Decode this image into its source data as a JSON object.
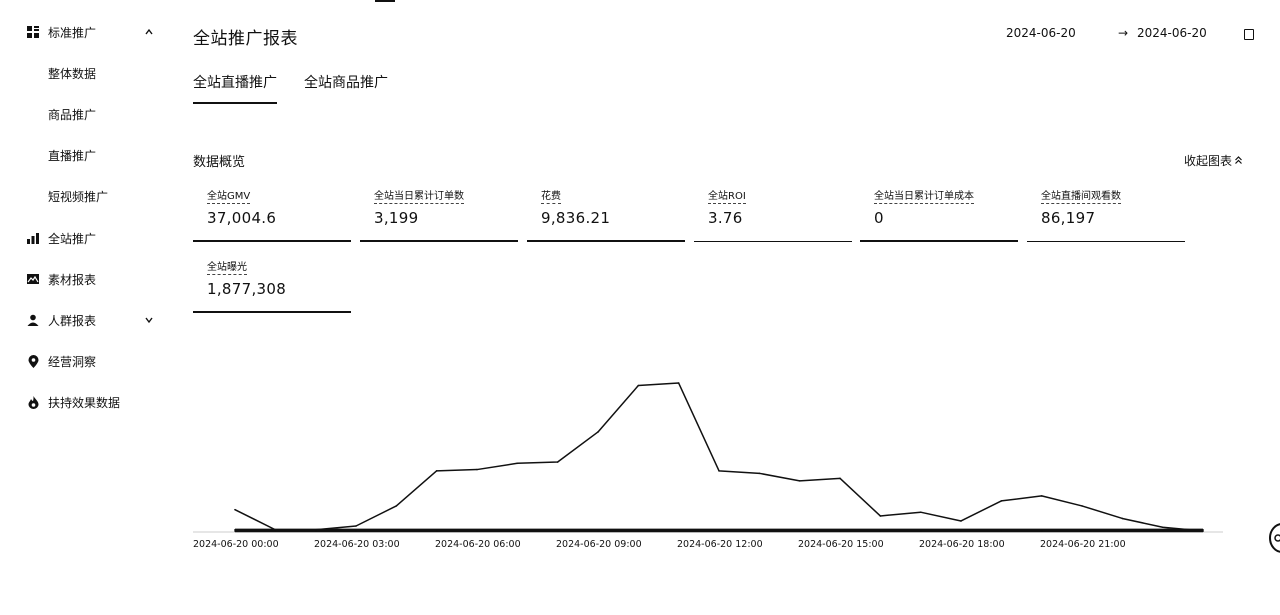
{
  "sidebar": {
    "items": [
      {
        "label": "标准推广",
        "icon": "grid-icon",
        "expand": "up"
      },
      {
        "label": "整体数据"
      },
      {
        "label": "商品推广"
      },
      {
        "label": "直播推广"
      },
      {
        "label": "短视频推广"
      },
      {
        "label": "全站推广",
        "icon": "bar-chart-icon"
      },
      {
        "label": "素材报表",
        "icon": "image-icon"
      },
      {
        "label": "人群报表",
        "icon": "person-icon",
        "expand": "down"
      },
      {
        "label": "经营洞察",
        "icon": "location-pin-icon"
      },
      {
        "label": "扶持效果数据",
        "icon": "flame-icon"
      }
    ]
  },
  "header": {
    "title": "全站推广报表",
    "date_start": "2024-06-20",
    "date_arrow": "→",
    "date_end": "2024-06-20"
  },
  "tabs": [
    {
      "label": "全站直播推广",
      "active": true
    },
    {
      "label": "全站商品推广",
      "active": false
    }
  ],
  "overview": {
    "title": "数据概览",
    "collapse_label": "收起图表"
  },
  "metrics": [
    {
      "label": "全站GMV",
      "value": "37,004.6"
    },
    {
      "label": "全站当日累计订单数",
      "value": "3,199"
    },
    {
      "label": "花费",
      "value": "9,836.21"
    },
    {
      "label": "全站ROI",
      "value": "3.76"
    },
    {
      "label": "全站当日累计订单成本",
      "value": "0"
    },
    {
      "label": "全站直播间观看数",
      "value": "86,197"
    },
    {
      "label": "全站曝光",
      "value": "1,877,308"
    }
  ],
  "chart_data": {
    "type": "line",
    "x_tick_labels": [
      "2024-06-20 00:00",
      "2024-06-20 03:00",
      "2024-06-20 06:00",
      "2024-06-20 09:00",
      "2024-06-20 12:00",
      "2024-06-20 15:00",
      "2024-06-20 18:00",
      "2024-06-20 21:00"
    ],
    "x": [
      0,
      1,
      2,
      3,
      4,
      5,
      6,
      7,
      8,
      9,
      10,
      11,
      12,
      13,
      14,
      15,
      16,
      17,
      18,
      19,
      20,
      21,
      22,
      23,
      24
    ],
    "series": [
      {
        "values": [
          17,
          1,
          1,
          4,
          20,
          48,
          49,
          54,
          55,
          79,
          116,
          118,
          48,
          46,
          40,
          42,
          12,
          15,
          8,
          24,
          28,
          20,
          10,
          3,
          0
        ]
      },
      {
        "values": [
          1,
          1,
          1,
          1,
          1,
          1,
          1,
          1,
          1,
          1,
          1,
          1,
          1,
          1,
          1,
          1,
          1,
          1,
          1,
          1,
          1,
          1,
          1,
          1,
          1
        ]
      },
      {
        "values": [
          0,
          0,
          0,
          0,
          0,
          0,
          0,
          0,
          0,
          0,
          0,
          0,
          0,
          0,
          0,
          0,
          0,
          0,
          0,
          0,
          0,
          0,
          0,
          0,
          0
        ]
      }
    ],
    "ylim": [
      0,
      130
    ],
    "grid": false,
    "colors": {
      "line": "#111111"
    }
  }
}
